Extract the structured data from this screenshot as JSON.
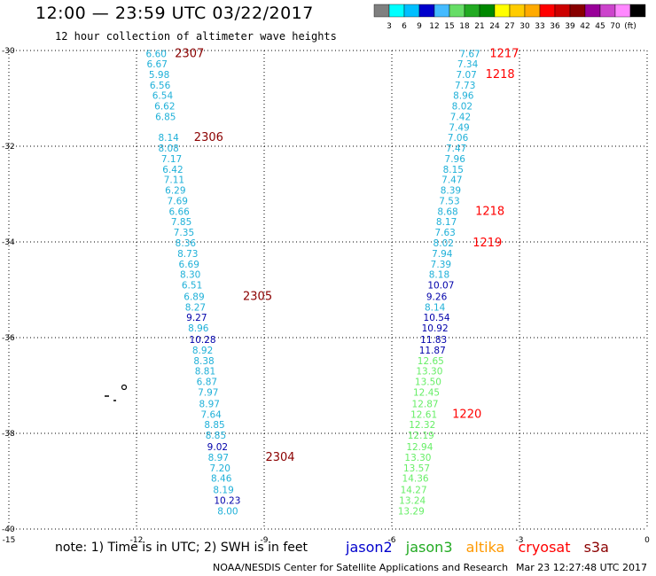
{
  "header": {
    "title": "12:00 — 23:59 UTC 03/22/2017",
    "subtitle": "12 hour collection of altimeter wave heights"
  },
  "colorbar": {
    "colors": [
      "#7f7f7f",
      "#00ffff",
      "#00bfff",
      "#0000cc",
      "#44bbff",
      "#66dd66",
      "#22aa22",
      "#008800",
      "#ffff00",
      "#ffcc00",
      "#ffaa00",
      "#ff0000",
      "#cc0000",
      "#880000",
      "#990099",
      "#cc44cc",
      "#ff88ff",
      "#000000"
    ],
    "labels": [
      "3",
      "6",
      "9",
      "12",
      "15",
      "18",
      "21",
      "24",
      "27",
      "30",
      "33",
      "36",
      "39",
      "42",
      "45",
      "70",
      "(ft)"
    ]
  },
  "chart_data": {
    "type": "scatter",
    "title": "12:00 — 23:59 UTC 03/22/2017",
    "subtitle": "12 hour collection of altimeter wave heights",
    "xlabel": "",
    "ylabel": "",
    "xlim": [
      -15,
      0
    ],
    "ylim": [
      -40,
      -30
    ],
    "x_ticks": [
      "-15",
      "-12",
      "-9",
      "-6",
      "-3",
      "0"
    ],
    "y_ticks": [
      "-30",
      "-32",
      "-34",
      "-36",
      "-38",
      "-40"
    ],
    "units": "ft",
    "track_color_scale": [
      {
        "max": 3,
        "color": "#7f7f7f"
      },
      {
        "max": 9,
        "color": "#1fb0d8"
      },
      {
        "max": 12,
        "color": "#0000aa"
      },
      {
        "max": 15,
        "color": "#66ee66"
      }
    ],
    "west_track": [
      {
        "lon": -11.78,
        "lat": -30.05,
        "swh": "6.60"
      },
      {
        "lon": -11.76,
        "lat": -30.26,
        "swh": "6.67"
      },
      {
        "lon": -11.71,
        "lat": -30.48,
        "swh": "5.98"
      },
      {
        "lon": -11.69,
        "lat": -30.7,
        "swh": "6.56"
      },
      {
        "lon": -11.63,
        "lat": -30.92,
        "swh": "6.54"
      },
      {
        "lon": -11.58,
        "lat": -31.14,
        "swh": "6.62"
      },
      {
        "lon": -11.56,
        "lat": -31.36,
        "swh": "6.85"
      },
      {
        "lon": -11.49,
        "lat": -31.8,
        "swh": "8.14"
      },
      {
        "lon": -11.49,
        "lat": -32.02,
        "swh": "8.08"
      },
      {
        "lon": -11.42,
        "lat": -32.24,
        "swh": "7.17"
      },
      {
        "lon": -11.39,
        "lat": -32.46,
        "swh": "6.42"
      },
      {
        "lon": -11.36,
        "lat": -32.68,
        "swh": "7.11"
      },
      {
        "lon": -11.33,
        "lat": -32.9,
        "swh": "6.29"
      },
      {
        "lon": -11.28,
        "lat": -33.12,
        "swh": "7.69"
      },
      {
        "lon": -11.24,
        "lat": -33.34,
        "swh": "6.66"
      },
      {
        "lon": -11.19,
        "lat": -33.56,
        "swh": "7.85"
      },
      {
        "lon": -11.13,
        "lat": -33.78,
        "swh": "7.35"
      },
      {
        "lon": -11.09,
        "lat": -34.0,
        "swh": "8.36"
      },
      {
        "lon": -11.04,
        "lat": -34.22,
        "swh": "8.73"
      },
      {
        "lon": -11.01,
        "lat": -34.44,
        "swh": "6.69"
      },
      {
        "lon": -10.98,
        "lat": -34.66,
        "swh": "8.30"
      },
      {
        "lon": -10.94,
        "lat": -34.88,
        "swh": "6.51"
      },
      {
        "lon": -10.89,
        "lat": -35.12,
        "swh": "6.89"
      },
      {
        "lon": -10.86,
        "lat": -35.34,
        "swh": "8.27"
      },
      {
        "lon": -10.83,
        "lat": -35.56,
        "swh": "9.27"
      },
      {
        "lon": -10.79,
        "lat": -35.78,
        "swh": "8.96"
      },
      {
        "lon": -10.76,
        "lat": -36.02,
        "swh": "10.28"
      },
      {
        "lon": -10.69,
        "lat": -36.24,
        "swh": "8.92"
      },
      {
        "lon": -10.66,
        "lat": -36.46,
        "swh": "8.38"
      },
      {
        "lon": -10.63,
        "lat": -36.68,
        "swh": "8.81"
      },
      {
        "lon": -10.59,
        "lat": -36.9,
        "swh": "6.87"
      },
      {
        "lon": -10.56,
        "lat": -37.12,
        "swh": "7.97"
      },
      {
        "lon": -10.53,
        "lat": -37.36,
        "swh": "8.97"
      },
      {
        "lon": -10.49,
        "lat": -37.58,
        "swh": "7.64"
      },
      {
        "lon": -10.41,
        "lat": -37.8,
        "swh": "8.85"
      },
      {
        "lon": -10.38,
        "lat": -38.02,
        "swh": "8.85"
      },
      {
        "lon": -10.34,
        "lat": -38.26,
        "swh": "9.02"
      },
      {
        "lon": -10.32,
        "lat": -38.48,
        "swh": "8.97"
      },
      {
        "lon": -10.28,
        "lat": -38.7,
        "swh": "7.20"
      },
      {
        "lon": -10.25,
        "lat": -38.92,
        "swh": "8.46"
      },
      {
        "lon": -10.2,
        "lat": -39.16,
        "swh": "8.19"
      },
      {
        "lon": -10.18,
        "lat": -39.38,
        "swh": "10.23"
      },
      {
        "lon": -10.1,
        "lat": -39.6,
        "swh": "8.00"
      }
    ],
    "east_track": [
      {
        "lon": -4.41,
        "lat": -30.05,
        "swh": "7.67"
      },
      {
        "lon": -4.46,
        "lat": -30.26,
        "swh": "7.34"
      },
      {
        "lon": -4.49,
        "lat": -30.48,
        "swh": "7.07"
      },
      {
        "lon": -4.52,
        "lat": -30.7,
        "swh": "7.73"
      },
      {
        "lon": -4.56,
        "lat": -30.92,
        "swh": "8.96"
      },
      {
        "lon": -4.59,
        "lat": -31.14,
        "swh": "8.02"
      },
      {
        "lon": -4.63,
        "lat": -31.36,
        "swh": "7.42"
      },
      {
        "lon": -4.66,
        "lat": -31.58,
        "swh": "7.49"
      },
      {
        "lon": -4.69,
        "lat": -31.8,
        "swh": "7.06"
      },
      {
        "lon": -4.73,
        "lat": -32.02,
        "swh": "7.47"
      },
      {
        "lon": -4.76,
        "lat": -32.24,
        "swh": "7.96"
      },
      {
        "lon": -4.8,
        "lat": -32.46,
        "swh": "8.15"
      },
      {
        "lon": -4.83,
        "lat": -32.68,
        "swh": "7.47"
      },
      {
        "lon": -4.86,
        "lat": -32.9,
        "swh": "8.39"
      },
      {
        "lon": -4.89,
        "lat": -33.12,
        "swh": "7.53"
      },
      {
        "lon": -4.93,
        "lat": -33.34,
        "swh": "8.68"
      },
      {
        "lon": -4.96,
        "lat": -33.56,
        "swh": "8.17"
      },
      {
        "lon": -4.99,
        "lat": -33.78,
        "swh": "7.63"
      },
      {
        "lon": -5.03,
        "lat": -34.0,
        "swh": "8.02"
      },
      {
        "lon": -5.06,
        "lat": -34.22,
        "swh": "7.94"
      },
      {
        "lon": -5.09,
        "lat": -34.44,
        "swh": "7.39"
      },
      {
        "lon": -5.13,
        "lat": -34.66,
        "swh": "8.18"
      },
      {
        "lon": -5.16,
        "lat": -34.88,
        "swh": "10.07"
      },
      {
        "lon": -5.19,
        "lat": -35.12,
        "swh": "9.26"
      },
      {
        "lon": -5.23,
        "lat": -35.34,
        "swh": "8.14"
      },
      {
        "lon": -5.26,
        "lat": -35.56,
        "swh": "10.54"
      },
      {
        "lon": -5.3,
        "lat": -35.78,
        "swh": "10.92"
      },
      {
        "lon": -5.33,
        "lat": -36.02,
        "swh": "11.83"
      },
      {
        "lon": -5.36,
        "lat": -36.24,
        "swh": "11.87"
      },
      {
        "lon": -5.4,
        "lat": -36.46,
        "swh": "12.65"
      },
      {
        "lon": -5.43,
        "lat": -36.68,
        "swh": "13.30"
      },
      {
        "lon": -5.46,
        "lat": -36.9,
        "swh": "13.50"
      },
      {
        "lon": -5.5,
        "lat": -37.12,
        "swh": "12.45"
      },
      {
        "lon": -5.53,
        "lat": -37.36,
        "swh": "12.87"
      },
      {
        "lon": -5.56,
        "lat": -37.58,
        "swh": "12.61"
      },
      {
        "lon": -5.6,
        "lat": -37.8,
        "swh": "12.32"
      },
      {
        "lon": -5.63,
        "lat": -38.02,
        "swh": "12.19"
      },
      {
        "lon": -5.66,
        "lat": -38.26,
        "swh": "12.94"
      },
      {
        "lon": -5.7,
        "lat": -38.48,
        "swh": "13.30"
      },
      {
        "lon": -5.73,
        "lat": -38.7,
        "swh": "13.57"
      },
      {
        "lon": -5.76,
        "lat": -38.92,
        "swh": "14.36"
      },
      {
        "lon": -5.8,
        "lat": -39.16,
        "swh": "14.27"
      },
      {
        "lon": -5.83,
        "lat": -39.38,
        "swh": "13.24"
      },
      {
        "lon": -5.86,
        "lat": -39.6,
        "swh": "13.29"
      }
    ],
    "time_annotations": [
      {
        "text": "2307",
        "lon": -11.1,
        "lat": -30.05,
        "color": "#8b0000"
      },
      {
        "text": "2306",
        "lon": -10.65,
        "lat": -31.8,
        "color": "#8b0000"
      },
      {
        "text": "2305",
        "lon": -9.5,
        "lat": -35.12,
        "color": "#8b0000"
      },
      {
        "text": "2304",
        "lon": -8.97,
        "lat": -38.48,
        "color": "#8b0000"
      },
      {
        "text": "1217",
        "lon": -3.7,
        "lat": -30.05,
        "color": "#ff0000"
      },
      {
        "text": "1218",
        "lon": -3.8,
        "lat": -30.48,
        "color": "#ff0000"
      },
      {
        "text": "1218",
        "lon": -4.04,
        "lat": -33.34,
        "color": "#ff0000"
      },
      {
        "text": "1219",
        "lon": -4.1,
        "lat": -34.0,
        "color": "#ff0000"
      },
      {
        "text": "1220",
        "lon": -4.58,
        "lat": -37.58,
        "color": "#ff0000"
      }
    ]
  },
  "footer": {
    "note": "note: 1) Time is in UTC; 2) SWH is in feet",
    "satellites": [
      {
        "name": "jason2",
        "color": "#0000cc"
      },
      {
        "name": "jason3",
        "color": "#22aa22"
      },
      {
        "name": "altika",
        "color": "#ff9900"
      },
      {
        "name": "cryosat",
        "color": "#ff0000"
      },
      {
        "name": "s3a",
        "color": "#8b0000"
      }
    ],
    "credit": "NOAA/NESDIS Center for Satellite Applications and Research",
    "timestamp": "Mar 23 12:27:48 UTC 2017"
  }
}
